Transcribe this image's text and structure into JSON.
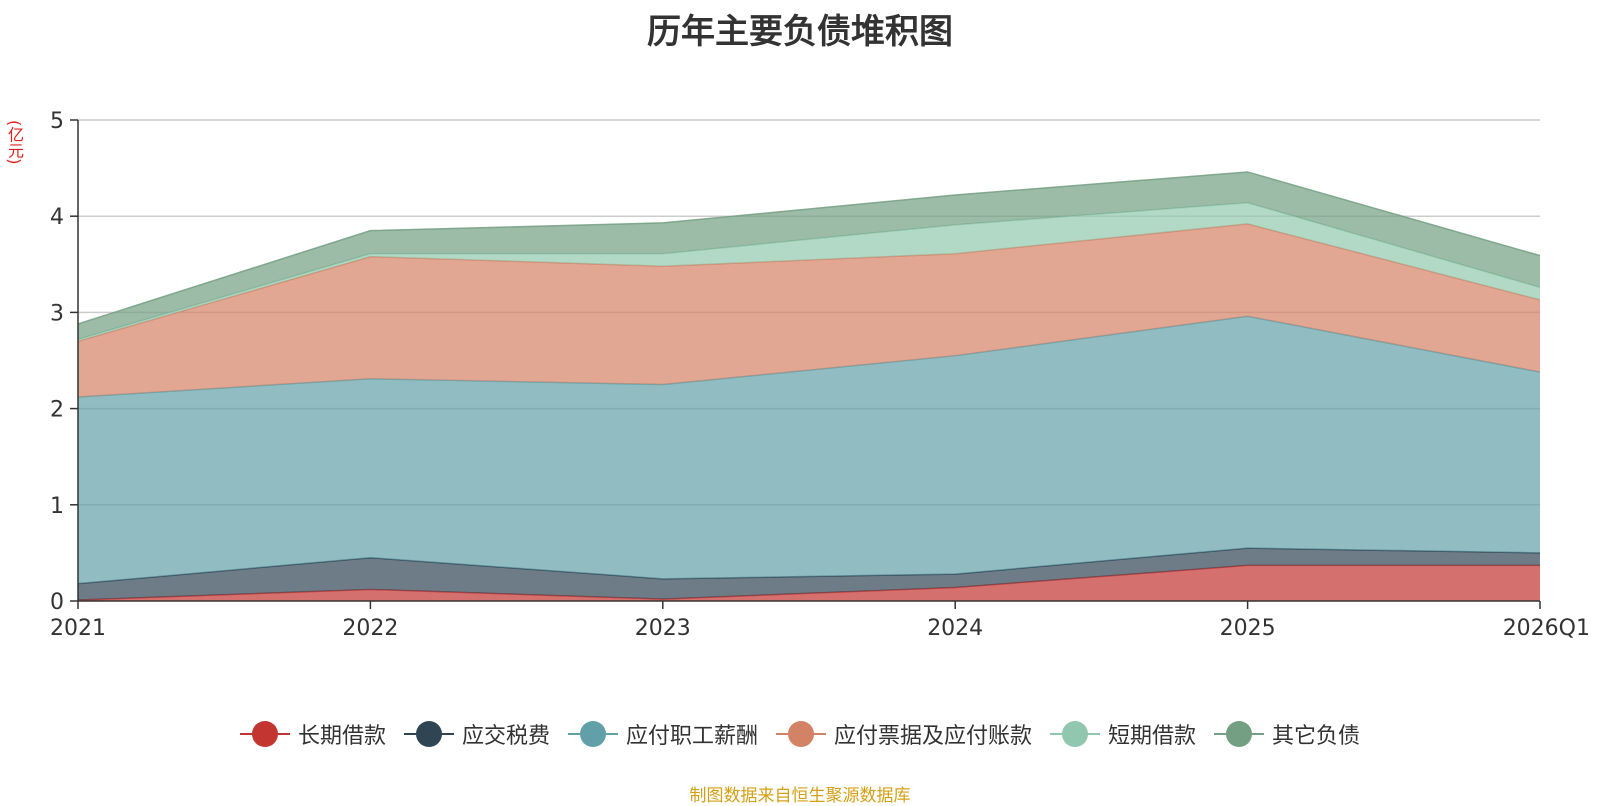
{
  "chart_data": {
    "type": "area",
    "stacked": true,
    "title": "历年主要负债堆积图",
    "ylabel": "(亿元)",
    "xlabel": "",
    "categories": [
      "2021",
      "2022",
      "2023",
      "2024",
      "2025",
      "2026Q1"
    ],
    "ylim": [
      0,
      5
    ],
    "yticks": [
      0,
      1,
      2,
      3,
      4,
      5
    ],
    "grid": true,
    "legend_position": "bottom",
    "series": [
      {
        "name": "长期借款",
        "color": "#c23531",
        "values": [
          0.01,
          0.12,
          0.02,
          0.14,
          0.37,
          0.37
        ]
      },
      {
        "name": "应交税费",
        "color": "#2f4554",
        "values": [
          0.17,
          0.33,
          0.21,
          0.14,
          0.18,
          0.13
        ]
      },
      {
        "name": "应付职工薪酬",
        "color": "#61a0a8",
        "values": [
          1.94,
          1.86,
          2.02,
          2.27,
          2.41,
          1.88
        ]
      },
      {
        "name": "应付票据及应付账款",
        "color": "#d48265",
        "values": [
          0.58,
          1.27,
          1.23,
          1.06,
          0.96,
          0.75
        ]
      },
      {
        "name": "短期借款",
        "color": "#91c7ae",
        "values": [
          0.02,
          0.03,
          0.13,
          0.3,
          0.22,
          0.13
        ]
      },
      {
        "name": "其它负债",
        "color": "#749f83",
        "values": [
          0.16,
          0.24,
          0.32,
          0.31,
          0.32,
          0.33
        ]
      }
    ]
  },
  "source": "制图数据来自恒生聚源数据库"
}
